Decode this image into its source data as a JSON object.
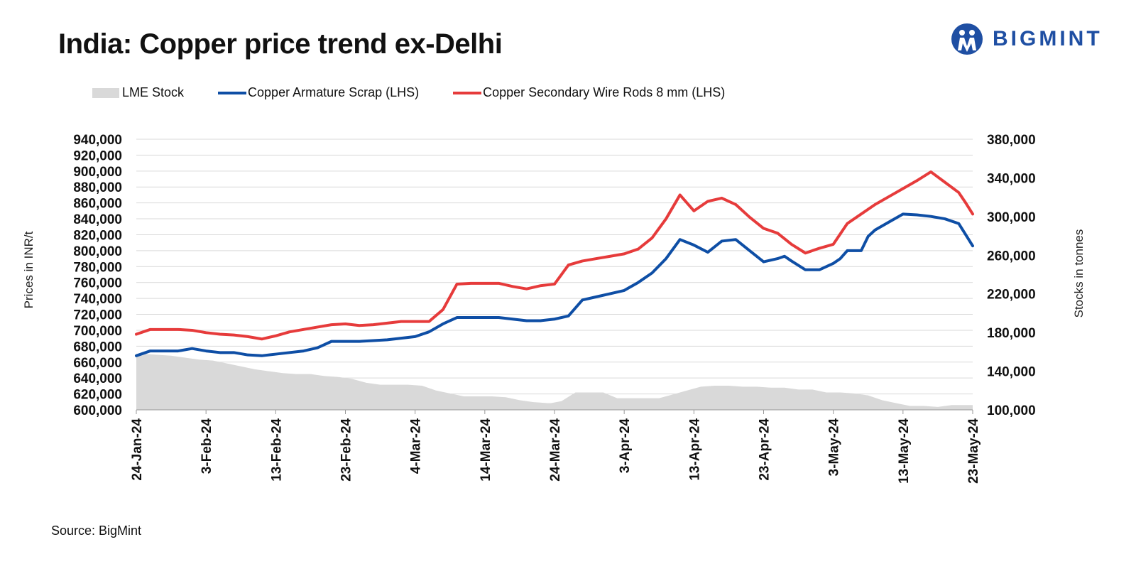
{
  "header": {
    "title": "India: Copper price trend ex-Delhi",
    "brand": "BIGMINT"
  },
  "footer": {
    "source": "Source: BigMint"
  },
  "colors": {
    "lme": "#d9d9d9",
    "armature": "#0e4ea5",
    "wirerods": "#e63b3b",
    "grid": "#d9d9d9",
    "brand": "#1f4fa3"
  },
  "chart_data": {
    "type": "line",
    "title": "India: Copper price trend ex-Delhi",
    "ylabel": "Prices in INR/t",
    "y2label": "Stocks in tonnes",
    "ylim": [
      600000,
      940000
    ],
    "y2lim": [
      100000,
      380000
    ],
    "y_ticks": [
      "940,000",
      "920,000",
      "900,000",
      "880,000",
      "860,000",
      "840,000",
      "820,000",
      "800,000",
      "780,000",
      "760,000",
      "740,000",
      "720,000",
      "700,000",
      "680,000",
      "660,000",
      "640,000",
      "620,000",
      "600,000"
    ],
    "y2_ticks": [
      "380,000",
      "340,000",
      "300,000",
      "260,000",
      "220,000",
      "180,000",
      "140,000",
      "100,000"
    ],
    "x_tick_labels": [
      "24-Jan-24",
      "3-Feb-24",
      "13-Feb-24",
      "23-Feb-24",
      "4-Mar-24",
      "14-Mar-24",
      "24-Mar-24",
      "3-Apr-24",
      "13-Apr-24",
      "23-Apr-24",
      "3-May-24",
      "13-May-24",
      "23-May-24"
    ],
    "x_range_days": [
      0,
      120
    ],
    "legend": [
      "LME Stock",
      "Copper Armature Scrap (LHS)",
      "Copper Secondary Wire Rods 8 mm (LHS)"
    ],
    "legend_position": "top",
    "series": [
      {
        "name": "LME Stock",
        "kind": "area",
        "axis": "right",
        "days": [
          0,
          1,
          3,
          5,
          7,
          9,
          11,
          13,
          15,
          17,
          19,
          21,
          23,
          25,
          27,
          29,
          31,
          33,
          35,
          36,
          37,
          39,
          41,
          43,
          45,
          47,
          49,
          51,
          53,
          55,
          57,
          59,
          59.5,
          61,
          63,
          65,
          67,
          69,
          71,
          73,
          75,
          77,
          79,
          81,
          83,
          85,
          87,
          89,
          91,
          93,
          95,
          97,
          99,
          101,
          103,
          105,
          107,
          109,
          111,
          113,
          115,
          117,
          120
        ],
        "values": [
          158000,
          158000,
          157000,
          156000,
          154000,
          152000,
          151000,
          148000,
          145000,
          142000,
          140000,
          138000,
          137000,
          137000,
          135000,
          134000,
          132000,
          128000,
          126000,
          126000,
          126000,
          126000,
          125000,
          120000,
          117000,
          114000,
          114000,
          114000,
          113000,
          110000,
          108000,
          107000,
          107000,
          109000,
          118000,
          118000,
          118000,
          112000,
          112000,
          112000,
          112000,
          116000,
          120000,
          124000,
          125000,
          125000,
          124000,
          124000,
          123000,
          123000,
          121000,
          121000,
          118000,
          118000,
          117000,
          115000,
          110000,
          107000,
          104000,
          104000,
          103000,
          105000,
          105000
        ]
      },
      {
        "name": "Copper Armature Scrap (LHS)",
        "kind": "line",
        "axis": "left",
        "days": [
          0,
          2,
          4,
          6,
          8,
          10,
          12,
          14,
          16,
          18,
          20,
          22,
          24,
          26,
          28,
          30,
          32,
          34,
          36,
          38,
          40,
          42,
          44,
          46,
          48,
          50,
          52,
          54,
          56,
          58,
          60,
          62,
          64,
          66,
          68,
          70,
          72,
          74,
          76,
          78,
          80,
          82,
          84,
          86,
          88,
          90,
          92,
          93,
          94,
          96,
          98,
          99,
          100,
          101,
          102,
          104,
          105,
          106,
          108,
          110,
          112,
          114,
          116,
          118,
          119,
          120
        ],
        "values": [
          668000,
          674000,
          674000,
          674000,
          677000,
          674000,
          672000,
          672000,
          669000,
          668000,
          670000,
          672000,
          674000,
          678000,
          686000,
          686000,
          686000,
          687000,
          688000,
          690000,
          692000,
          698000,
          708000,
          716000,
          716000,
          716000,
          716000,
          714000,
          712000,
          712000,
          714000,
          718000,
          738000,
          742000,
          746000,
          750000,
          760000,
          772000,
          790000,
          814000,
          807000,
          798000,
          812000,
          814000,
          800000,
          786000,
          790000,
          793000,
          787000,
          776000,
          776000,
          780000,
          784000,
          790000,
          800000,
          800000,
          818000,
          826000,
          836000,
          846000,
          845000,
          843000,
          840000,
          834000,
          820000,
          806000
        ]
      },
      {
        "name": "Copper Secondary Wire Rods 8 mm (LHS)",
        "kind": "line",
        "axis": "left",
        "days": [
          0,
          2,
          4,
          6,
          8,
          10,
          12,
          14,
          16,
          18,
          20,
          22,
          24,
          26,
          28,
          30,
          32,
          34,
          36,
          38,
          40,
          42,
          44,
          46,
          48,
          50,
          52,
          54,
          56,
          58,
          60,
          62,
          64,
          66,
          68,
          70,
          72,
          74,
          76,
          78,
          80,
          82,
          84,
          86,
          88,
          90,
          92,
          94,
          96,
          98,
          100,
          102,
          104,
          106,
          108,
          110,
          112,
          114,
          116,
          118,
          119,
          120
        ],
        "values": [
          695000,
          701000,
          701000,
          701000,
          700000,
          697000,
          695000,
          694000,
          692000,
          689000,
          693000,
          698000,
          701000,
          704000,
          707000,
          708000,
          706000,
          707000,
          709000,
          711000,
          711000,
          711000,
          726000,
          758000,
          759000,
          759000,
          759000,
          755000,
          752000,
          756000,
          758000,
          782000,
          787000,
          790000,
          793000,
          796000,
          802000,
          816000,
          840000,
          870000,
          850000,
          862000,
          866000,
          858000,
          842000,
          828000,
          822000,
          808000,
          797000,
          803000,
          808000,
          834000,
          846000,
          858000,
          868000,
          878000,
          888000,
          899000,
          886000,
          873000,
          860000,
          846000
        ]
      }
    ]
  }
}
